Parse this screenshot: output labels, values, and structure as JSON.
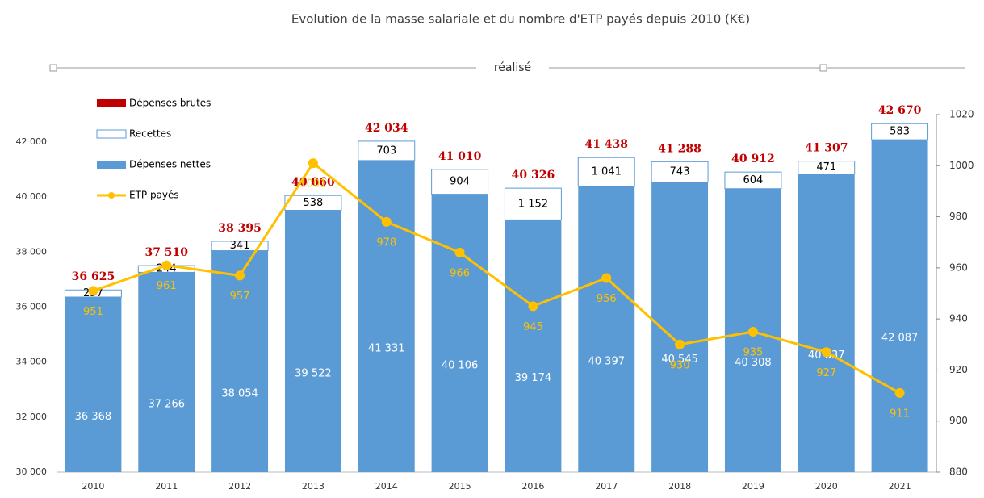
{
  "chart_data": {
    "type": "stacked-bar-line",
    "title": "Evolution de la masse salariale et du nombre d'ETP payés depuis 2010 (K€)",
    "subtitle": "réalisé",
    "categories": [
      "2010",
      "2011",
      "2012",
      "2013",
      "2014",
      "2015",
      "2016",
      "2017",
      "2018",
      "2019",
      "2020",
      "2021"
    ],
    "series": [
      {
        "name": "Dépenses brutes",
        "color": "#c00000",
        "role": "total-label",
        "values": [
          36625,
          37510,
          38395,
          40060,
          42034,
          41010,
          40326,
          41438,
          41288,
          40912,
          41307,
          42670
        ],
        "value_labels": [
          "36 625",
          "37 510",
          "38 395",
          "40 060",
          "42 034",
          "41 010",
          "40 326",
          "41 438",
          "41 288",
          "40 912",
          "41 307",
          "42 670"
        ]
      },
      {
        "name": "Recettes",
        "color": "#ffffff",
        "stack": "top",
        "values": [
          257,
          244,
          341,
          538,
          703,
          904,
          1152,
          1041,
          743,
          604,
          471,
          583
        ],
        "value_labels": [
          "257",
          "244",
          "341",
          "538",
          "703",
          "904",
          "1 152",
          "1 041",
          "743",
          "604",
          "471",
          "583"
        ]
      },
      {
        "name": "Dépenses nettes",
        "color": "#5b9bd5",
        "stack": "base",
        "values": [
          36368,
          37266,
          38054,
          39522,
          41331,
          40106,
          39174,
          40397,
          40545,
          40308,
          40837,
          42087
        ],
        "value_labels": [
          "36 368",
          "37 266",
          "38 054",
          "39 522",
          "41 331",
          "40 106",
          "39 174",
          "40 397",
          "40 545",
          "40 308",
          "40 837",
          "42 087"
        ]
      },
      {
        "name": "ETP payés",
        "color": "#ffc000",
        "axis": "y2",
        "values": [
          951,
          961,
          957,
          1001,
          978,
          966,
          945,
          956,
          930,
          935,
          927,
          911
        ]
      }
    ],
    "ylim": [
      30000,
      43000
    ],
    "yticks": [
      {
        "value": 30000,
        "label": "30 000"
      },
      {
        "value": 32000,
        "label": "32 000"
      },
      {
        "value": 34000,
        "label": "34 000"
      },
      {
        "value": 36000,
        "label": "36 000"
      },
      {
        "value": 38000,
        "label": "38 000"
      },
      {
        "value": 40000,
        "label": "40 000"
      },
      {
        "value": 42000,
        "label": "42 000"
      }
    ],
    "y2lim": [
      880,
      1020
    ],
    "y2ticks": [
      880,
      900,
      920,
      940,
      960,
      980,
      1000,
      1020
    ],
    "legend": "top-left",
    "grid": false
  }
}
